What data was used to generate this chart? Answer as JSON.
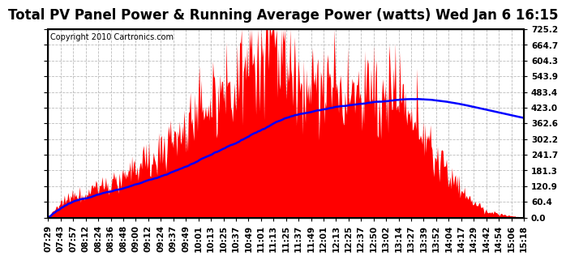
{
  "title": "Total PV Panel Power & Running Average Power (watts) Wed Jan 6 16:15",
  "copyright": "Copyright 2010 Cartronics.com",
  "background_color": "#ffffff",
  "plot_bg_color": "#ffffff",
  "yticks": [
    0.0,
    60.4,
    120.9,
    181.3,
    241.7,
    302.2,
    362.6,
    423.0,
    483.4,
    543.9,
    604.3,
    664.7,
    725.2
  ],
  "ylim": [
    0.0,
    725.2
  ],
  "xtick_labels": [
    "07:29",
    "07:43",
    "07:57",
    "08:12",
    "08:24",
    "08:36",
    "08:48",
    "09:00",
    "09:12",
    "09:24",
    "09:37",
    "09:49",
    "10:01",
    "10:13",
    "10:25",
    "10:37",
    "10:49",
    "11:01",
    "11:13",
    "11:25",
    "11:37",
    "11:49",
    "12:01",
    "12:13",
    "12:25",
    "12:37",
    "12:50",
    "13:02",
    "13:14",
    "13:27",
    "13:39",
    "13:52",
    "14:04",
    "14:17",
    "14:29",
    "14:42",
    "14:54",
    "15:06",
    "15:18"
  ],
  "fill_color": "#ff0000",
  "line_color": "#0000ff",
  "grid_color": "#aaaaaa",
  "border_color": "#000000",
  "title_fontsize": 12,
  "copyright_fontsize": 7,
  "tick_fontsize": 7.5
}
